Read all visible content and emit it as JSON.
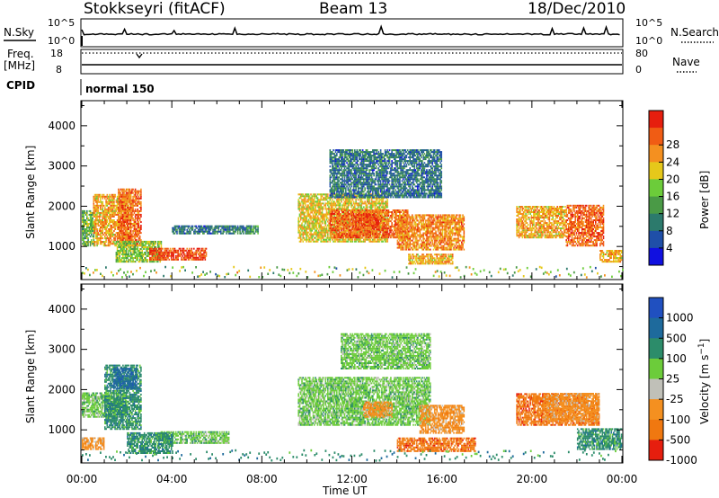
{
  "header": {
    "title": "Stokkseyri (fitACF)",
    "beam": "Beam 13",
    "date": "18/Dec/2010"
  },
  "top_panels": {
    "nsky_label": "N.Sky",
    "nsky_ticks": [
      "10^5",
      "10^0"
    ],
    "nsearch_label": "N.Search",
    "nsearch_ticks": [
      "10^5",
      "10^0"
    ],
    "freq_label": "Freq.",
    "freq_unit": "[MHz]",
    "freq_ticks": [
      "18",
      "8"
    ],
    "nave_label": "Nave",
    "nave_ticks": [
      "80",
      "0"
    ],
    "cpid_label": "CPID",
    "cpid_value": "normal 150"
  },
  "x_axis": {
    "label": "Time UT",
    "ticks": [
      "00:00",
      "04:00",
      "08:00",
      "12:00",
      "16:00",
      "20:00",
      "00:00"
    ],
    "range_hours": [
      0,
      24
    ]
  },
  "chart_data": [
    {
      "type": "heatmap",
      "name": "power",
      "ylabel": "Slant Range [km]",
      "yticks": [
        "1000",
        "2000",
        "3000",
        "4000"
      ],
      "ylim": [
        200,
        4600
      ],
      "xlim_hours": [
        0,
        24
      ],
      "colorbar": {
        "label": "Power [dB]",
        "ticks": [
          "4",
          "8",
          "12",
          "16",
          "20",
          "24",
          "28"
        ],
        "range": [
          0,
          32
        ],
        "colors": [
          "#1010e0",
          "#1f4fa8",
          "#2c7a6c",
          "#4a9a46",
          "#6ccc3a",
          "#e6c81a",
          "#f49020",
          "#f05c14",
          "#e61e0e"
        ]
      },
      "regions": [
        {
          "t": [
            0.0,
            0.6
          ],
          "r": [
            1000,
            1900
          ],
          "level": 14
        },
        {
          "t": [
            0.5,
            2.2
          ],
          "r": [
            1000,
            2300
          ],
          "level": 22
        },
        {
          "t": [
            1.6,
            2.6
          ],
          "r": [
            1000,
            2400
          ],
          "level": 26
        },
        {
          "t": [
            1.5,
            3.5
          ],
          "r": [
            600,
            1100
          ],
          "level": 16
        },
        {
          "t": [
            3.0,
            5.5
          ],
          "r": [
            650,
            950
          ],
          "level": 28
        },
        {
          "t": [
            4.0,
            7.5
          ],
          "r": [
            1300,
            1500
          ],
          "level": 8
        },
        {
          "t": [
            7.3,
            7.8
          ],
          "r": [
            1300,
            1500
          ],
          "level": 12
        },
        {
          "t": [
            9.6,
            13.6
          ],
          "r": [
            1100,
            2300
          ],
          "level": 20
        },
        {
          "t": [
            11.0,
            14.5
          ],
          "r": [
            1200,
            1900
          ],
          "level": 26
        },
        {
          "t": [
            12.0,
            13.2
          ],
          "r": [
            1400,
            1800
          ],
          "level": 28
        },
        {
          "t": [
            14.0,
            17.0
          ],
          "r": [
            900,
            1800
          ],
          "level": 24
        },
        {
          "t": [
            14.5,
            16.5
          ],
          "r": [
            550,
            800
          ],
          "level": 22
        },
        {
          "t": [
            11.0,
            16.0
          ],
          "r": [
            2200,
            3400
          ],
          "level": 8
        },
        {
          "t": [
            19.3,
            21.5
          ],
          "r": [
            1200,
            2000
          ],
          "level": 22
        },
        {
          "t": [
            21.5,
            23.2
          ],
          "r": [
            1000,
            2000
          ],
          "level": 26
        },
        {
          "t": [
            23.0,
            24.0
          ],
          "r": [
            600,
            900
          ],
          "level": 22
        }
      ]
    },
    {
      "type": "heatmap",
      "name": "velocity",
      "ylabel": "Slant Range [km]",
      "yticks": [
        "1000",
        "2000",
        "3000",
        "4000"
      ],
      "ylim": [
        200,
        4600
      ],
      "xlim_hours": [
        0,
        24
      ],
      "colorbar": {
        "label": "Velocity [m s^-1]",
        "ticks": [
          "1000",
          "500",
          "100",
          "25",
          "-25",
          "-100",
          "-500",
          "-1000"
        ],
        "colors": [
          "#2050c0",
          "#1e6a9c",
          "#2c8c6a",
          "#6ccc3a",
          "#c0c0b8",
          "#f49020",
          "#f07810",
          "#e61e0e"
        ]
      },
      "regions": [
        {
          "t": [
            0.0,
            2.0
          ],
          "r": [
            1300,
            1900
          ],
          "level": "25"
        },
        {
          "t": [
            0.0,
            1.0
          ],
          "r": [
            500,
            800
          ],
          "level": "-100"
        },
        {
          "t": [
            1.0,
            2.6
          ],
          "r": [
            1000,
            2600
          ],
          "level": "100"
        },
        {
          "t": [
            1.4,
            2.4
          ],
          "r": [
            2000,
            2500
          ],
          "level": "500"
        },
        {
          "t": [
            3.5,
            6.5
          ],
          "r": [
            650,
            950
          ],
          "level": "25"
        },
        {
          "t": [
            2.0,
            4.0
          ],
          "r": [
            400,
            900
          ],
          "level": "100"
        },
        {
          "t": [
            9.6,
            15.5
          ],
          "r": [
            1100,
            2300
          ],
          "level": "25"
        },
        {
          "t": [
            12.5,
            13.8
          ],
          "r": [
            1300,
            1700
          ],
          "level": "-100"
        },
        {
          "t": [
            11.5,
            15.5
          ],
          "r": [
            2500,
            3400
          ],
          "level": "25"
        },
        {
          "t": [
            15.0,
            17.0
          ],
          "r": [
            900,
            1600
          ],
          "level": "-100"
        },
        {
          "t": [
            14.0,
            17.5
          ],
          "r": [
            450,
            800
          ],
          "level": "-500"
        },
        {
          "t": [
            19.3,
            23.0
          ],
          "r": [
            1100,
            1900
          ],
          "level": "-500"
        },
        {
          "t": [
            20.5,
            23.0
          ],
          "r": [
            1200,
            1900
          ],
          "level": "-100"
        },
        {
          "t": [
            22.0,
            24.0
          ],
          "r": [
            500,
            1000
          ],
          "level": "100"
        }
      ]
    }
  ]
}
